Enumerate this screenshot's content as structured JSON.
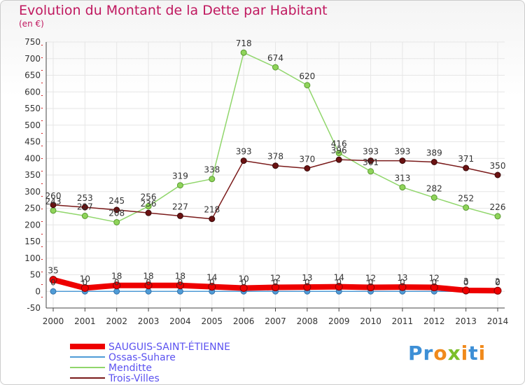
{
  "title": "Evolution du Montant de la Dette par Habitant",
  "unit": "(en €)",
  "logo": {
    "text": "Proxiti"
  },
  "chart_data": {
    "type": "line",
    "title": "Evolution du Montant de la Dette par Habitant",
    "ylabel": "(en €)",
    "xlabel": "",
    "x": [
      "2000",
      "2001",
      "2002",
      "2003",
      "2004",
      "2005",
      "2006",
      "2007",
      "2008",
      "2009",
      "2010",
      "2011",
      "2012",
      "2013",
      "2014"
    ],
    "ylim": [
      -50,
      750
    ],
    "yticks": [
      -50,
      0,
      50,
      100,
      150,
      200,
      250,
      300,
      350,
      400,
      450,
      500,
      550,
      600,
      650,
      700,
      750
    ],
    "ytick_labels": [
      "-50",
      "0",
      "50",
      "100",
      "150",
      "200",
      "250",
      "300",
      "350",
      "400",
      "450",
      "500",
      "550",
      "600",
      "650",
      "700",
      "750"
    ],
    "grid": true,
    "legend_position": "bottom-left",
    "series": [
      {
        "name": "SAUGUIS-SAINT-ÉTIENNE",
        "color": "#ee0000",
        "values": [
          35,
          10,
          18,
          18,
          18,
          14,
          10,
          12,
          13,
          14,
          12,
          13,
          12,
          3,
          2
        ],
        "labels": [
          "35",
          "10",
          "18",
          "18",
          "18",
          "14",
          "10",
          "12",
          "13",
          "14",
          "12",
          "13",
          "12",
          "3",
          "2"
        ]
      },
      {
        "name": "Ossas-Suhare",
        "color": "#4f9bd6",
        "values": [
          0,
          0,
          0,
          0,
          0,
          0,
          0,
          0,
          0,
          0,
          0,
          0,
          0,
          0,
          0
        ],
        "labels": [
          "0",
          "0",
          "0",
          "0",
          "0",
          "0",
          "0",
          "0",
          "0",
          "0",
          "0",
          "0",
          "0",
          "0",
          "0"
        ]
      },
      {
        "name": "Menditte",
        "color": "#90d66b",
        "values": [
          243,
          227,
          208,
          256,
          319,
          338,
          718,
          674,
          620,
          416,
          361,
          313,
          282,
          252,
          226
        ],
        "labels": [
          "243",
          "227",
          "208",
          "256",
          "319",
          "338",
          "718",
          "674",
          "620",
          "416",
          "361",
          "313",
          "282",
          "252",
          "226"
        ]
      },
      {
        "name": "Trois-Villes",
        "color": "#7a1a1a",
        "values": [
          260,
          253,
          245,
          236,
          227,
          218,
          393,
          378,
          370,
          396,
          393,
          393,
          389,
          371,
          350
        ],
        "labels": [
          "260",
          "253",
          "245",
          "236",
          "227",
          "218",
          "393",
          "378",
          "370",
          "396",
          "393",
          "393",
          "389",
          "371",
          "350"
        ]
      }
    ]
  }
}
